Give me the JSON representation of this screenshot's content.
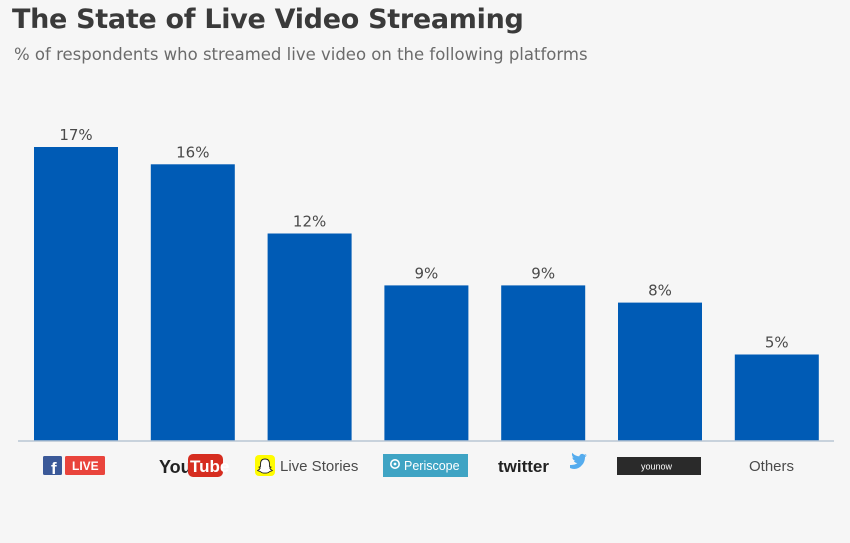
{
  "title": "The State of Live Video Streaming",
  "subtitle": "% of respondents who streamed live video on the following platforms",
  "colors": {
    "bar": "#005bb5",
    "axis": "#b9c6d4",
    "facebook_blue": "#3b5998",
    "live_red": "#e9443c",
    "youtube_red": "#d62d20",
    "snapchat_yellow": "#fffc00",
    "periscope_teal": "#3fa4c4",
    "twitter_blue": "#55acee",
    "younow_dark": "#2a2a2a"
  },
  "chart_data": {
    "type": "bar",
    "categories": [
      "Facebook Live",
      "YouTube",
      "Live Stories",
      "Periscope",
      "Twitter",
      "YouNow",
      "Others"
    ],
    "values": [
      17,
      16,
      12,
      9,
      9,
      8,
      5
    ],
    "value_labels": [
      "17%",
      "16%",
      "12%",
      "9%",
      "9%",
      "8%",
      "5%"
    ],
    "ylim": [
      0,
      17
    ],
    "grid": false,
    "xlabel": "",
    "ylabel": ""
  },
  "logos": {
    "facebook_live": {
      "icon": "facebook-f-icon",
      "badge": "LIVE"
    },
    "youtube": {
      "word1": "You",
      "word2": "Tube"
    },
    "snapchat": {
      "icon": "snapchat-ghost-icon",
      "text": "Live Stories"
    },
    "periscope": {
      "icon": "periscope-pin-icon",
      "text": "Periscope"
    },
    "twitter": {
      "text": "twitter",
      "icon": "twitter-bird-icon"
    },
    "younow": {
      "text": "younow"
    },
    "others": {
      "text": "Others"
    }
  }
}
